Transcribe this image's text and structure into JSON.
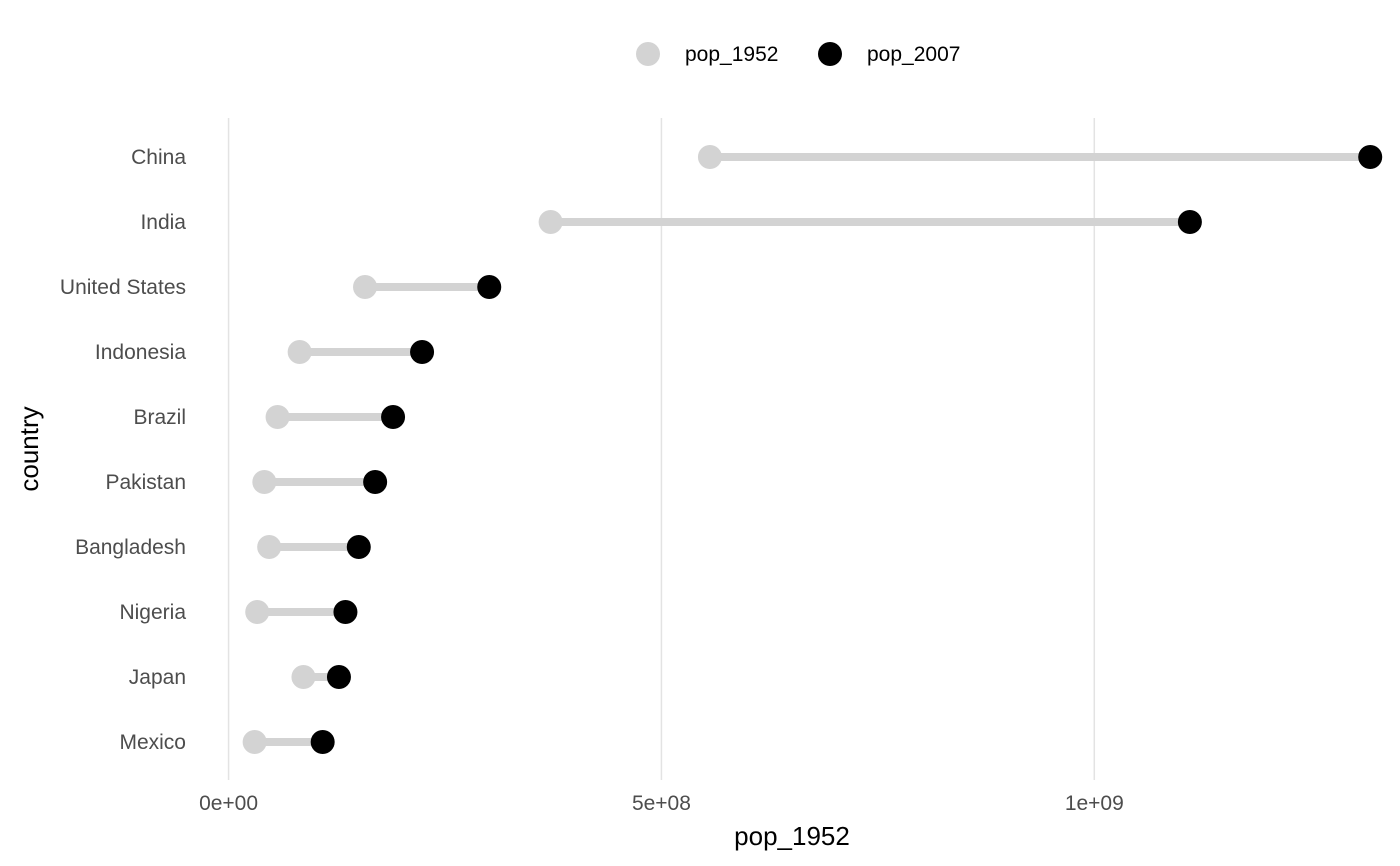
{
  "chart_data": {
    "type": "dumbbell",
    "xlabel": "pop_1952",
    "ylabel": "country",
    "x_ticks": [
      {
        "value": 0,
        "label": "0e+00"
      },
      {
        "value": 500000000,
        "label": "5e+08"
      },
      {
        "value": 1000000000,
        "label": "1e+09"
      }
    ],
    "xlim": [
      -33000000,
      1330000000
    ],
    "grid": true,
    "legend_position": "top",
    "series": [
      {
        "name": "pop_1952",
        "color": "#d3d3d3"
      },
      {
        "name": "pop_2007",
        "color": "#000000"
      }
    ],
    "segment_color": "#d3d3d3",
    "categories": [
      "China",
      "India",
      "United States",
      "Indonesia",
      "Brazil",
      "Pakistan",
      "Bangladesh",
      "Nigeria",
      "Japan",
      "Mexico"
    ],
    "rows": [
      {
        "country": "China",
        "pop_1952": 556000000,
        "pop_2007": 1318700000
      },
      {
        "country": "India",
        "pop_1952": 372000000,
        "pop_2007": 1110400000
      },
      {
        "country": "United States",
        "pop_1952": 157600000,
        "pop_2007": 301100000
      },
      {
        "country": "Indonesia",
        "pop_1952": 82100000,
        "pop_2007": 223500000
      },
      {
        "country": "Brazil",
        "pop_1952": 56600000,
        "pop_2007": 190000000
      },
      {
        "country": "Pakistan",
        "pop_1952": 41300000,
        "pop_2007": 169300000
      },
      {
        "country": "Bangladesh",
        "pop_1952": 46900000,
        "pop_2007": 150400000
      },
      {
        "country": "Nigeria",
        "pop_1952": 33100000,
        "pop_2007": 135000000
      },
      {
        "country": "Japan",
        "pop_1952": 86500000,
        "pop_2007": 127500000
      },
      {
        "country": "Mexico",
        "pop_1952": 30100000,
        "pop_2007": 108700000
      }
    ]
  }
}
